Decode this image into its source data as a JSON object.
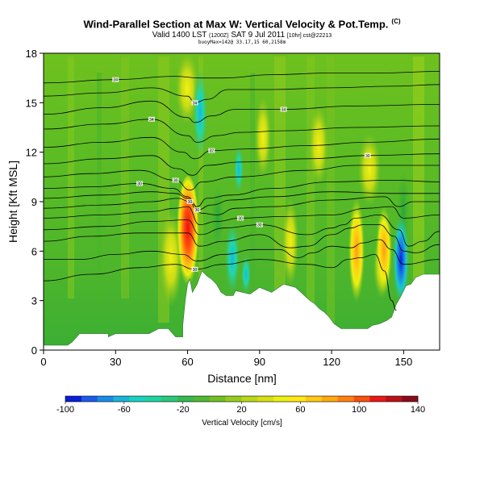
{
  "header": {
    "title": "Wind-Parallel Section at Max W: Vertical Velocity & Pot.Temp.",
    "title_tag": "(C)",
    "subtitle_main": "Valid 1400 LST",
    "subtitle_a": "(1200Z)",
    "subtitle_b": "SAT 9 Jul 2011",
    "subtitle_c": "[10hr] cst@22213",
    "meta": "buoyMax=142@ 33.17,15 60,2158m"
  },
  "chart_data": {
    "type": "heatmap",
    "title": "Wind-Parallel Section at Max W: Vertical Velocity & Pot.Temp.",
    "xlabel": "Distance [nm]",
    "ylabel": "Height [Kft MSL]",
    "xlim": [
      0,
      165
    ],
    "ylim": [
      0,
      18
    ],
    "xticks": [
      0,
      30,
      60,
      90,
      120,
      150
    ],
    "yticks": [
      0,
      3,
      6,
      9,
      12,
      15,
      18
    ],
    "terrain": [
      [
        0,
        0.3
      ],
      [
        10,
        0.3
      ],
      [
        12,
        0.5
      ],
      [
        15,
        1.0
      ],
      [
        27,
        1.0
      ],
      [
        27,
        0.8
      ],
      [
        30,
        1.0
      ],
      [
        44,
        1.0
      ],
      [
        48,
        1.3
      ],
      [
        52,
        1.3
      ],
      [
        55,
        0.8
      ],
      [
        58,
        0.8
      ],
      [
        58,
        1.5
      ],
      [
        59,
        3.0
      ],
      [
        60,
        4.0
      ],
      [
        61,
        4.3
      ],
      [
        62,
        3.5
      ],
      [
        64,
        4.0
      ],
      [
        66,
        4.8
      ],
      [
        68,
        4.5
      ],
      [
        70,
        4.3
      ],
      [
        72,
        4.0
      ],
      [
        74,
        3.5
      ],
      [
        76,
        3.3
      ],
      [
        79,
        3.3
      ],
      [
        80,
        3.6
      ],
      [
        83,
        3.5
      ],
      [
        86,
        3.4
      ],
      [
        90,
        3.8
      ],
      [
        95,
        3.5
      ],
      [
        100,
        4.0
      ],
      [
        105,
        3.8
      ],
      [
        108,
        3.4
      ],
      [
        111,
        3.0
      ],
      [
        113,
        2.8
      ],
      [
        115,
        2.5
      ],
      [
        117,
        2.3
      ],
      [
        119,
        2.0
      ],
      [
        121,
        1.6
      ],
      [
        124,
        1.3
      ],
      [
        127,
        1.3
      ],
      [
        131,
        1.3
      ],
      [
        135,
        1.3
      ],
      [
        137,
        1.5
      ],
      [
        140,
        1.6
      ],
      [
        143,
        1.8
      ],
      [
        145,
        2.0
      ],
      [
        147,
        2.8
      ],
      [
        149,
        3.3
      ],
      [
        151,
        3.9
      ],
      [
        153,
        4.0
      ],
      [
        155,
        4.4
      ],
      [
        158,
        4.6
      ],
      [
        165,
        4.6
      ]
    ],
    "theta_contours": [
      {
        "label": "34",
        "points": [
          [
            0,
            16.2
          ],
          [
            30,
            16.4
          ],
          [
            55,
            16.6
          ],
          [
            65,
            16.5
          ],
          [
            75,
            16.5
          ],
          [
            95,
            16.7
          ],
          [
            120,
            16.8
          ],
          [
            140,
            16.8
          ],
          [
            165,
            16.9
          ]
        ]
      },
      {
        "label": "34",
        "points": [
          [
            0,
            15.4
          ],
          [
            25,
            15.6
          ],
          [
            45,
            15.9
          ],
          [
            60,
            15.4
          ],
          [
            63,
            15.0
          ],
          [
            68,
            15.2
          ],
          [
            77,
            15.8
          ],
          [
            95,
            15.8
          ],
          [
            120,
            15.9
          ],
          [
            145,
            16.0
          ],
          [
            165,
            16.1
          ]
        ]
      },
      {
        "label": "34",
        "points": [
          [
            0,
            14.3
          ],
          [
            25,
            14.7
          ],
          [
            45,
            15.1
          ],
          [
            60,
            14.1
          ],
          [
            63,
            13.8
          ],
          [
            70,
            14.2
          ],
          [
            80,
            14.6
          ],
          [
            100,
            14.6
          ],
          [
            130,
            14.8
          ],
          [
            165,
            14.9
          ]
        ]
      },
      {
        "label": "34",
        "points": [
          [
            0,
            13.4
          ],
          [
            25,
            13.7
          ],
          [
            45,
            14.0
          ],
          [
            60,
            13.0
          ],
          [
            64,
            12.6
          ],
          [
            72,
            13.0
          ],
          [
            82,
            13.2
          ],
          [
            100,
            13.3
          ],
          [
            130,
            13.5
          ],
          [
            165,
            13.6
          ]
        ]
      },
      {
        "label": "32",
        "points": [
          [
            0,
            12.3
          ],
          [
            25,
            12.6
          ],
          [
            45,
            12.9
          ],
          [
            58,
            12.0
          ],
          [
            63,
            11.6
          ],
          [
            70,
            12.1
          ],
          [
            85,
            12.2
          ],
          [
            110,
            12.4
          ],
          [
            135,
            12.6
          ],
          [
            165,
            12.8
          ]
        ]
      },
      {
        "label": "30",
        "points": [
          [
            0,
            11.3
          ],
          [
            25,
            11.6
          ],
          [
            45,
            11.8
          ],
          [
            56,
            11.0
          ],
          [
            62,
            10.6
          ],
          [
            68,
            11.2
          ],
          [
            82,
            11.4
          ],
          [
            110,
            11.6
          ],
          [
            135,
            11.8
          ],
          [
            165,
            11.9
          ]
        ]
      },
      {
        "label": "30",
        "points": [
          [
            0,
            10.5
          ],
          [
            20,
            10.7
          ],
          [
            40,
            10.9
          ],
          [
            55,
            10.3
          ],
          [
            61,
            9.7
          ],
          [
            66,
            10.2
          ],
          [
            80,
            10.5
          ],
          [
            110,
            10.9
          ],
          [
            130,
            11.2
          ],
          [
            165,
            11.2
          ]
        ]
      },
      {
        "label": "30",
        "points": [
          [
            0,
            9.8
          ],
          [
            20,
            9.9
          ],
          [
            40,
            10.1
          ],
          [
            54,
            9.8
          ],
          [
            60,
            9.3
          ],
          [
            64,
            8.7
          ],
          [
            68,
            9.2
          ],
          [
            78,
            9.4
          ],
          [
            95,
            9.8
          ],
          [
            120,
            10.2
          ],
          [
            145,
            10.3
          ],
          [
            165,
            10.2
          ]
        ]
      },
      {
        "label": "30",
        "points": [
          [
            0,
            9.2
          ],
          [
            25,
            9.4
          ],
          [
            45,
            9.6
          ],
          [
            55,
            9.5
          ],
          [
            60,
            9.2
          ],
          [
            64,
            8.5
          ],
          [
            70,
            8.8
          ],
          [
            78,
            9.1
          ],
          [
            95,
            9.3
          ],
          [
            120,
            9.6
          ],
          [
            145,
            9.5
          ],
          [
            165,
            9.5
          ]
        ]
      },
      {
        "label": "30",
        "points": [
          [
            0,
            8.6
          ],
          [
            25,
            8.8
          ],
          [
            45,
            9.0
          ],
          [
            56,
            9.2
          ],
          [
            61,
            9.0
          ],
          [
            66,
            8.3
          ],
          [
            72,
            8.2
          ],
          [
            80,
            8.6
          ],
          [
            95,
            8.7
          ],
          [
            120,
            9.1
          ],
          [
            142,
            9.3
          ],
          [
            148,
            8.7
          ],
          [
            154,
            9.0
          ],
          [
            165,
            9.0
          ]
        ]
      },
      {
        "label": "30",
        "points": [
          [
            0,
            8.0
          ],
          [
            25,
            8.2
          ],
          [
            45,
            8.4
          ],
          [
            55,
            8.6
          ],
          [
            60,
            8.7
          ],
          [
            65,
            7.6
          ],
          [
            72,
            7.8
          ],
          [
            82,
            8.0
          ],
          [
            100,
            8.1
          ],
          [
            120,
            8.2
          ],
          [
            135,
            8.6
          ],
          [
            145,
            8.7
          ],
          [
            150,
            8.0
          ],
          [
            165,
            8.2
          ]
        ]
      },
      {
        "label": "30",
        "points": [
          [
            0,
            7.3
          ],
          [
            25,
            7.5
          ],
          [
            45,
            7.8
          ],
          [
            60,
            7.9
          ],
          [
            65,
            7.0
          ],
          [
            75,
            7.4
          ],
          [
            90,
            7.6
          ],
          [
            110,
            7.0
          ],
          [
            120,
            7.4
          ],
          [
            125,
            7.6
          ],
          [
            130,
            8.0
          ],
          [
            140,
            8.2
          ],
          [
            148,
            7.3
          ],
          [
            152,
            6.3
          ],
          [
            158,
            6.6
          ],
          [
            165,
            7.2
          ]
        ]
      },
      {
        "label": "",
        "points": [
          [
            0,
            6.6
          ],
          [
            20,
            6.9
          ],
          [
            40,
            7.1
          ],
          [
            60,
            7.1
          ],
          [
            65,
            6.3
          ],
          [
            75,
            6.6
          ],
          [
            90,
            7.0
          ],
          [
            103,
            6.2
          ],
          [
            110,
            6.3
          ],
          [
            120,
            7.0
          ],
          [
            128,
            7.4
          ],
          [
            133,
            7.6
          ],
          [
            140,
            7.6
          ],
          [
            146,
            6.9
          ],
          [
            150,
            6.0
          ],
          [
            155,
            5.9
          ],
          [
            165,
            6.4
          ]
        ]
      },
      {
        "label": "",
        "points": [
          [
            0,
            5.5
          ],
          [
            15,
            5.5
          ],
          [
            30,
            5.8
          ],
          [
            45,
            6.0
          ],
          [
            58,
            5.8
          ],
          [
            64,
            5.4
          ],
          [
            75,
            5.8
          ],
          [
            88,
            6.1
          ],
          [
            98,
            6.1
          ],
          [
            106,
            5.6
          ],
          [
            112,
            5.9
          ],
          [
            120,
            6.3
          ],
          [
            128,
            6.2
          ],
          [
            133,
            6.5
          ],
          [
            140,
            6.7
          ],
          [
            145,
            6.1
          ],
          [
            150,
            5.2
          ],
          [
            165,
            5.5
          ]
        ]
      },
      {
        "label": "30",
        "points": [
          [
            0,
            4.2
          ],
          [
            20,
            4.6
          ],
          [
            40,
            5.0
          ],
          [
            55,
            5.2
          ],
          [
            63,
            4.9
          ],
          [
            75,
            5.2
          ],
          [
            90,
            5.5
          ],
          [
            110,
            5.2
          ],
          [
            120,
            5.0
          ],
          [
            127,
            5.5
          ],
          [
            132,
            5.6
          ],
          [
            138,
            5.8
          ],
          [
            142,
            4.8
          ],
          [
            145,
            3.0
          ],
          [
            147,
            2.4
          ]
        ]
      }
    ],
    "colorbar": {
      "label": "Vertical Velocity [cm/s]",
      "range": [
        -100,
        140
      ],
      "tick_labels": [
        "-100",
        "-60",
        "-20",
        "20",
        "60",
        "100",
        "140"
      ],
      "colors": [
        "#0a1ed8",
        "#1e5ae6",
        "#1a8ce6",
        "#1ab4d8",
        "#1ad2c0",
        "#1ed4a0",
        "#2ac87a",
        "#36b850",
        "#50b830",
        "#70c020",
        "#94cc20",
        "#b8d818",
        "#d6e012",
        "#eef010",
        "#ffe814",
        "#ffc814",
        "#ffa810",
        "#ff8010",
        "#f85010",
        "#e81818",
        "#b81218",
        "#8a0c1a"
      ]
    }
  }
}
